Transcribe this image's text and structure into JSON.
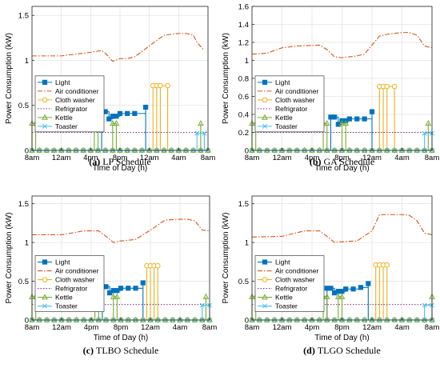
{
  "chart_data": [
    {
      "type": "line",
      "caption_letter": "(a)",
      "caption_text": "LP Schedule",
      "xlabel": "Time of Day (h)",
      "ylabel": "Power Consumption (kW)",
      "xlim": [
        8,
        32
      ],
      "ylim": [
        0,
        1.6
      ],
      "yticks": [
        0,
        0.5,
        1,
        1.5
      ],
      "ytick_labels": [
        "0",
        "0.5",
        "1",
        "1.5"
      ],
      "xticks": [
        8,
        12,
        16,
        20,
        24,
        28,
        32
      ],
      "xtick_labels": [
        "8am",
        "12am",
        "4pm",
        "8pm",
        "12am",
        "4am",
        "8am"
      ],
      "grid": true,
      "legend_position": "center-left",
      "series": [
        {
          "name": "Light",
          "color": "#0072BD",
          "marker": "square",
          "step": true,
          "x": [
            8,
            17.5,
            18,
            18.5,
            19,
            19.5,
            20,
            21,
            22,
            23.5
          ],
          "y": [
            0,
            0.43,
            0.43,
            0.35,
            0.38,
            0.38,
            0.41,
            0.41,
            0.41,
            0.48
          ]
        },
        {
          "name": "Air conditioner",
          "color": "#D95319",
          "dash": "6 2 1.5 2",
          "x": [
            8,
            12,
            16,
            17.5,
            18,
            19,
            20,
            21,
            22,
            24,
            26,
            28,
            29,
            30,
            30.5,
            31.5
          ],
          "y": [
            1.05,
            1.05,
            1.09,
            1.11,
            1.08,
            0.99,
            1.02,
            1.02,
            1.04,
            1.16,
            1.28,
            1.3,
            1.3,
            1.28,
            1.2,
            1.11
          ]
        },
        {
          "name": "Cloth washer",
          "color": "#EDB120",
          "marker": "circle",
          "pulse": true,
          "x": [
            24.5,
            25,
            25.5,
            26.5
          ],
          "y": [
            0.72,
            0.72,
            0.72,
            0.72
          ]
        },
        {
          "name": "Refrigrator",
          "color": "#7E2F8E",
          "dash": "1.5 2",
          "x": [
            8,
            32
          ],
          "y": [
            0.2,
            0.2
          ]
        },
        {
          "name": "Kettle",
          "color": "#77AC30",
          "marker": "triangle",
          "pulse": true,
          "x": [
            8,
            8.5,
            16.5,
            17,
            19,
            19.5,
            31
          ],
          "y": [
            0.3,
            0.3,
            0.3,
            0.3,
            0.3,
            0.3,
            0.3
          ]
        },
        {
          "name": "Toaster",
          "color": "#4DBEEE",
          "marker": "x",
          "pulse": true,
          "x": [
            30.5,
            31.5
          ],
          "y": [
            0.19,
            0.19
          ]
        }
      ]
    },
    {
      "type": "line",
      "caption_letter": "(b)",
      "caption_text": "GA Schedule",
      "xlabel": "Time of Day (h)",
      "ylabel": "Power Consumption (kW)",
      "xlim": [
        8,
        32
      ],
      "ylim": [
        0,
        1.6
      ],
      "yticks": [
        0,
        0.2,
        0.4,
        0.6,
        0.8,
        1.0,
        1.2,
        1.4,
        1.6
      ],
      "ytick_labels": [
        "0",
        "0.2",
        "0.4",
        "0.6",
        "0.8",
        "1",
        "1.2",
        "1.4",
        "1.6"
      ],
      "xticks": [
        8,
        12,
        16,
        20,
        24,
        28,
        32
      ],
      "xtick_labels": [
        "8am",
        "12am",
        "4pm",
        "8pm",
        "12am",
        "4am",
        "8am"
      ],
      "grid": true,
      "legend_position": "center-left",
      "series": [
        {
          "name": "Light",
          "color": "#0072BD",
          "marker": "square",
          "step": true,
          "x": [
            8,
            18.5,
            19,
            19.5,
            20,
            20.5,
            21,
            22,
            23,
            24
          ],
          "y": [
            0,
            0.37,
            0.37,
            0.29,
            0.33,
            0.33,
            0.35,
            0.35,
            0.35,
            0.43
          ]
        },
        {
          "name": "Air conditioner",
          "color": "#D95319",
          "dash": "6 2 1.5 2",
          "x": [
            8,
            10,
            12,
            14,
            17,
            18,
            19,
            20,
            22,
            23,
            25,
            26,
            28,
            29,
            30,
            31,
            32
          ],
          "y": [
            1.07,
            1.08,
            1.14,
            1.16,
            1.17,
            1.12,
            1.04,
            1.03,
            1.05,
            1.07,
            1.27,
            1.29,
            1.31,
            1.31,
            1.28,
            1.16,
            1.14
          ]
        },
        {
          "name": "Cloth washer",
          "color": "#EDB120",
          "marker": "circle",
          "pulse": true,
          "x": [
            25,
            25.5,
            26,
            27
          ],
          "y": [
            0.71,
            0.71,
            0.71,
            0.71
          ]
        },
        {
          "name": "Refrigrator",
          "color": "#7E2F8E",
          "dash": "1.5 2",
          "x": [
            8,
            32
          ],
          "y": [
            0.2,
            0.2
          ]
        },
        {
          "name": "Kettle",
          "color": "#77AC30",
          "marker": "triangle",
          "pulse": true,
          "x": [
            8,
            8.5,
            17.5,
            18,
            20,
            20.5,
            31.5
          ],
          "y": [
            0.3,
            0.3,
            0.3,
            0.3,
            0.3,
            0.3,
            0.3
          ]
        },
        {
          "name": "Toaster",
          "color": "#4DBEEE",
          "marker": "x",
          "pulse": true,
          "x": [
            31,
            32
          ],
          "y": [
            0.19,
            0.19
          ]
        }
      ]
    },
    {
      "type": "line",
      "caption_letter": "(c)",
      "caption_text": "TLBO Schedule",
      "xlabel": "Time of Day (h)",
      "ylabel": "Power Consumption (kW)",
      "xlim": [
        8,
        32
      ],
      "ylim": [
        0,
        1.6
      ],
      "yticks": [
        0,
        0.5,
        1,
        1.5
      ],
      "ytick_labels": [
        "0",
        "0.5",
        "1",
        "1.5"
      ],
      "xticks": [
        8,
        12,
        16,
        20,
        24,
        28,
        32
      ],
      "xtick_labels": [
        "8am",
        "12am",
        "4pm",
        "8pm",
        "12am",
        "4am",
        "8am"
      ],
      "grid": true,
      "legend_position": "center-left",
      "series": [
        {
          "name": "Light",
          "color": "#0072BD",
          "marker": "square",
          "step": true,
          "x": [
            8,
            17.5,
            18,
            18.5,
            19,
            19.5,
            20,
            21,
            22,
            23
          ],
          "y": [
            0,
            0.43,
            0.43,
            0.35,
            0.38,
            0.38,
            0.41,
            0.41,
            0.41,
            0.48
          ]
        },
        {
          "name": "Air conditioner",
          "color": "#D95319",
          "dash": "6 2 1.5 2",
          "x": [
            8,
            12,
            15,
            17,
            18,
            19,
            20,
            22,
            24,
            26,
            28,
            29,
            30,
            31,
            32
          ],
          "y": [
            1.1,
            1.1,
            1.15,
            1.15,
            1.08,
            1.0,
            1.02,
            1.04,
            1.16,
            1.29,
            1.3,
            1.3,
            1.28,
            1.16,
            1.15
          ]
        },
        {
          "name": "Cloth washer",
          "color": "#EDB120",
          "marker": "circle",
          "pulse": true,
          "x": [
            23.5,
            24,
            24.5,
            25
          ],
          "y": [
            0.7,
            0.7,
            0.7,
            0.7
          ]
        },
        {
          "name": "Refrigrator",
          "color": "#7E2F8E",
          "dash": "1.5 2",
          "x": [
            8,
            32
          ],
          "y": [
            0.2,
            0.2
          ]
        },
        {
          "name": "Kettle",
          "color": "#77AC30",
          "marker": "triangle",
          "pulse": true,
          "x": [
            8,
            8.5,
            16.5,
            17,
            19,
            19.5,
            31.5
          ],
          "y": [
            0.3,
            0.3,
            0.3,
            0.3,
            0.3,
            0.3,
            0.3
          ]
        },
        {
          "name": "Toaster",
          "color": "#4DBEEE",
          "marker": "x",
          "pulse": true,
          "x": [
            31,
            32
          ],
          "y": [
            0.19,
            0.19
          ]
        }
      ]
    },
    {
      "type": "line",
      "caption_letter": "(d)",
      "caption_text": "TLGO Schedule",
      "xlabel": "Time of Day (h)",
      "ylabel": "Power Consumption (kW)",
      "xlim": [
        8,
        32
      ],
      "ylim": [
        0,
        1.6
      ],
      "yticks": [
        0,
        0.5,
        1,
        1.5
      ],
      "ytick_labels": [
        "0",
        "0.5",
        "1",
        "1.5"
      ],
      "xticks": [
        8,
        12,
        16,
        20,
        24,
        28,
        32
      ],
      "xtick_labels": [
        "8am",
        "12am",
        "4pm",
        "8pm",
        "12am",
        "4am",
        "8am"
      ],
      "grid": true,
      "legend_position": "center-left",
      "series": [
        {
          "name": "Light",
          "color": "#0072BD",
          "marker": "square",
          "step": true,
          "x": [
            8,
            18,
            18.5,
            19,
            19.5,
            20,
            20.5,
            21.5,
            22.5,
            23.5
          ],
          "y": [
            0,
            0.41,
            0.41,
            0.35,
            0.37,
            0.37,
            0.4,
            0.4,
            0.42,
            0.47
          ]
        },
        {
          "name": "Air conditioner",
          "color": "#D95319",
          "dash": "6 2 1.5 2",
          "x": [
            8,
            12,
            15,
            17,
            18,
            19,
            20,
            22,
            24,
            25,
            26,
            28,
            29,
            30,
            31,
            32
          ],
          "y": [
            1.07,
            1.08,
            1.15,
            1.15,
            1.08,
            1.0,
            1.01,
            1.02,
            1.15,
            1.36,
            1.36,
            1.36,
            1.35,
            1.28,
            1.12,
            1.1
          ]
        },
        {
          "name": "Cloth washer",
          "color": "#EDB120",
          "marker": "circle",
          "pulse": true,
          "x": [
            24.5,
            25,
            25.5,
            26
          ],
          "y": [
            0.71,
            0.71,
            0.71,
            0.71
          ]
        },
        {
          "name": "Refrigrator",
          "color": "#7E2F8E",
          "dash": "1.5 2",
          "x": [
            8,
            32
          ],
          "y": [
            0.2,
            0.2
          ]
        },
        {
          "name": "Kettle",
          "color": "#77AC30",
          "marker": "triangle",
          "pulse": true,
          "x": [
            8,
            8.5,
            17.5,
            18,
            19.5,
            20,
            32
          ],
          "y": [
            0.3,
            0.3,
            0.3,
            0.3,
            0.3,
            0.3,
            0.3
          ]
        },
        {
          "name": "Toaster",
          "color": "#4DBEEE",
          "marker": "x",
          "pulse": true,
          "x": [
            31,
            32
          ],
          "y": [
            0.19,
            0.19
          ]
        }
      ]
    }
  ]
}
